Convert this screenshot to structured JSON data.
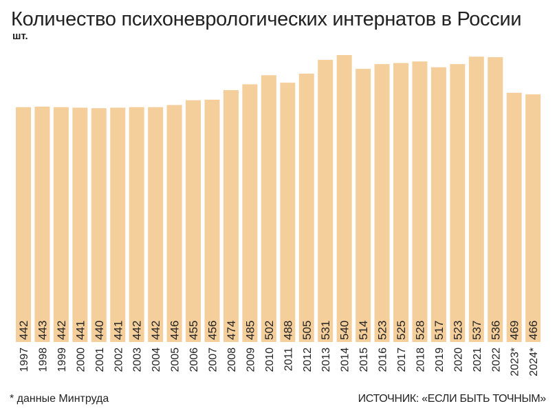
{
  "chart_data": {
    "type": "bar",
    "title": "Количество психоневрологических интернатов в России",
    "ylabel": "шт.",
    "categories": [
      "1997",
      "1998",
      "1999",
      "2000",
      "2001",
      "2002",
      "2003",
      "2004",
      "2005",
      "2006",
      "2007",
      "2008",
      "2009",
      "2010",
      "2011",
      "2012",
      "2013",
      "2014",
      "2015",
      "2016",
      "2017",
      "2018",
      "2019",
      "2020",
      "2021",
      "2022",
      "2023*",
      "2024*"
    ],
    "values": [
      442,
      443,
      442,
      441,
      440,
      441,
      442,
      442,
      446,
      455,
      456,
      474,
      485,
      502,
      488,
      505,
      531,
      540,
      514,
      523,
      525,
      528,
      517,
      523,
      537,
      536,
      469,
      466
    ],
    "ylim": [
      0,
      540
    ],
    "grid": false,
    "bar_color": "#f5cf9b",
    "footnote": "* данные Минтруда",
    "source": "ИСТОЧНИК: «ЕСЛИ БЫТЬ ТОЧНЫМ»"
  }
}
